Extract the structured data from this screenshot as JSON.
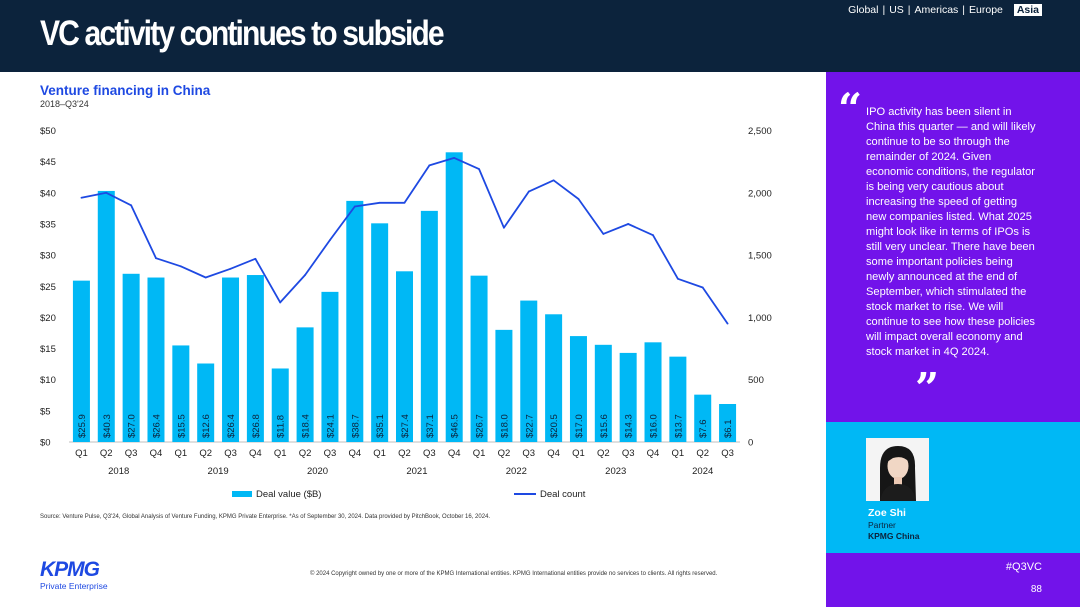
{
  "header": {
    "title": "VC activity continues to subside",
    "regions": [
      "Global",
      "US",
      "Americas",
      "Europe",
      "Asia"
    ],
    "active_region": "Asia"
  },
  "chart_data": {
    "type": "bar",
    "title": "Venture financing in China",
    "subtitle": "2018–Q3'24",
    "categories": [
      "Q1",
      "Q2",
      "Q3",
      "Q4",
      "Q1",
      "Q2",
      "Q3",
      "Q4",
      "Q1",
      "Q2",
      "Q3",
      "Q4",
      "Q1",
      "Q2",
      "Q3",
      "Q4",
      "Q1",
      "Q2",
      "Q3",
      "Q4",
      "Q1",
      "Q2",
      "Q3",
      "Q4",
      "Q1",
      "Q2",
      "Q3"
    ],
    "years": [
      "2018",
      "2019",
      "2020",
      "2021",
      "2022",
      "2023",
      "2024"
    ],
    "series": [
      {
        "name": "Deal value ($B)",
        "type": "bar",
        "axis": "left",
        "color": "#00b8f5",
        "values": [
          25.9,
          40.3,
          27.0,
          26.4,
          15.5,
          12.6,
          26.4,
          26.8,
          11.8,
          18.4,
          24.1,
          38.7,
          35.1,
          27.4,
          37.1,
          46.5,
          26.7,
          18.0,
          22.7,
          20.5,
          17.0,
          15.6,
          14.3,
          16.0,
          13.7,
          7.6,
          6.1
        ],
        "labels": [
          "$25.9",
          "$40.3",
          "$27.0",
          "$26.4",
          "$15.5",
          "$12.6",
          "$26.4",
          "$26.8",
          "$11.8",
          "$18.4",
          "$24.1",
          "$38.7",
          "$35.1",
          "$27.4",
          "$37.1",
          "$46.5",
          "$26.7",
          "$18.0",
          "$22.7",
          "$20.5",
          "$17.0",
          "$15.6",
          "$14.3",
          "$16.0",
          "$13.7",
          "$7.6",
          "$6.1"
        ]
      },
      {
        "name": "Deal count",
        "type": "line",
        "axis": "right",
        "color": "#1e49e2",
        "values": [
          1960,
          2000,
          1900,
          1475,
          1410,
          1320,
          1390,
          1470,
          1120,
          1340,
          1620,
          1890,
          1920,
          1920,
          2220,
          2280,
          2190,
          1720,
          2010,
          2100,
          1950,
          1670,
          1750,
          1660,
          1310,
          1240,
          950
        ]
      }
    ],
    "y_left": {
      "min": 0,
      "max": 50,
      "ticks": [
        0,
        5,
        10,
        15,
        20,
        25,
        30,
        35,
        40,
        45,
        50
      ],
      "tick_labels": [
        "$0",
        "$5",
        "$10",
        "$15",
        "$20",
        "$25",
        "$30",
        "$35",
        "$40",
        "$45",
        "$50"
      ]
    },
    "y_right": {
      "min": 0,
      "max": 2500,
      "ticks": [
        0,
        500,
        1000,
        1500,
        2000,
        2500
      ],
      "tick_labels": [
        "0",
        "500",
        "1,000",
        "1,500",
        "2,000",
        "2,500"
      ]
    },
    "legend": [
      "Deal value ($B)",
      "Deal count"
    ],
    "legend_position": "bottom"
  },
  "footer": {
    "source": "Source: Venture Pulse, Q3'24, Global Analysis of Venture Funding, KPMG Private Enterprise. *As of September 30, 2024. Data provided by PitchBook, October 16, 2024.",
    "copyright": "© 2024 Copyright owned by one or more of the KPMG International entities. KPMG International entities provide no services to clients. All rights reserved.",
    "logo_text": "KPMG",
    "logo_sub": "Private Enterprise"
  },
  "sidebar": {
    "open_quote": "“",
    "close_quote": "”",
    "quote": "IPO activity has been silent in China this quarter — and will likely continue to be so through the remainder of 2024. Given economic conditions, the regulator is being very cautious about increasing the speed of getting new companies listed. What 2025 might look like in terms of IPOs is still very unclear. There have been some important policies being newly announced at the end of September, which stimulated the stock market to rise. We will continue to see how these policies will impact overall economy and stock market in 4Q 2024.",
    "person_name": "Zoe Shi",
    "person_role": "Partner",
    "person_org": "KPMG China",
    "hashtag": "#Q3VC",
    "page_number": "88"
  },
  "colors": {
    "navy": "#0c233c",
    "blue": "#1e49e2",
    "cyan": "#00b8f5",
    "purple": "#7213ea"
  }
}
